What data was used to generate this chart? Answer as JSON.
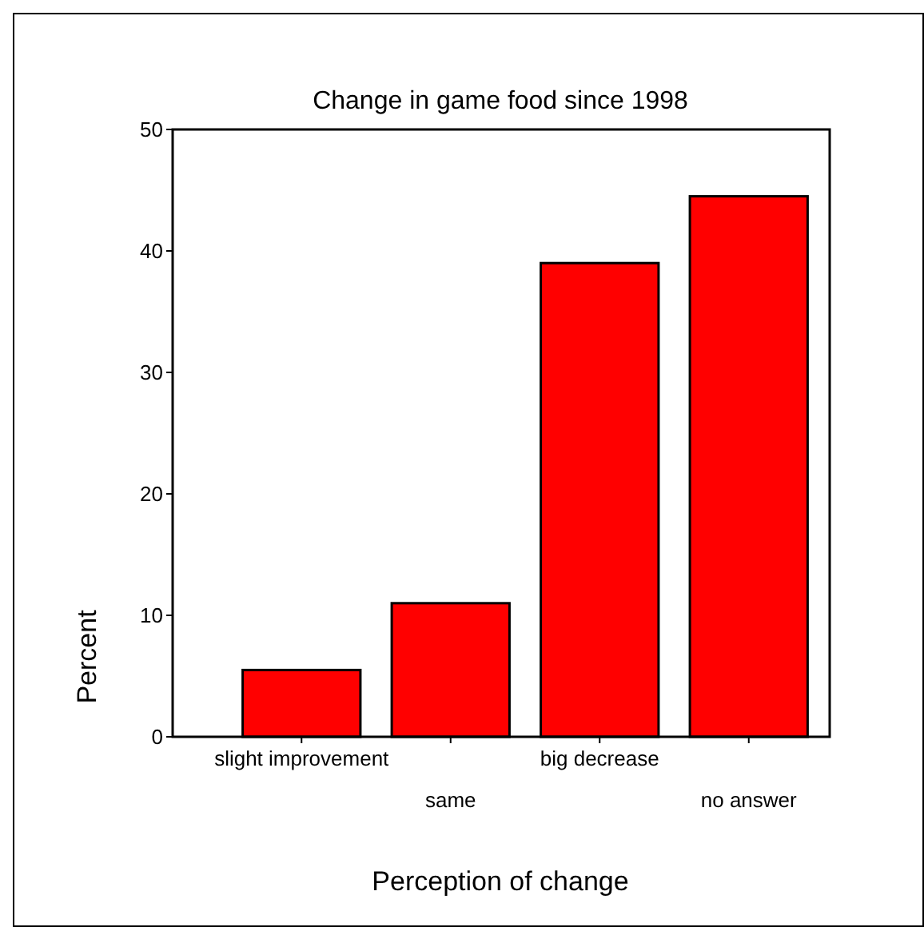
{
  "chart_data": {
    "type": "bar",
    "title": "Change in game food since 1998",
    "xlabel": "Perception of change",
    "ylabel": "Percent",
    "categories": [
      "slight improvement",
      "same",
      "big decrease",
      "no answer"
    ],
    "values": [
      5.5,
      11.0,
      39.0,
      44.5
    ],
    "color": "#ff0000",
    "ylim": [
      0,
      50
    ],
    "yticks": [
      0,
      10,
      20,
      30,
      40,
      50
    ],
    "grid": false
  }
}
